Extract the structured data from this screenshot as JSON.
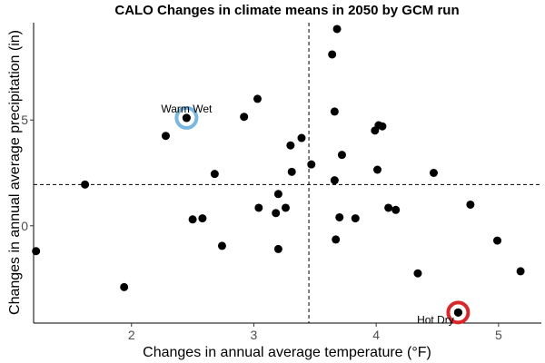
{
  "chart_data": {
    "type": "scatter",
    "title": "CALO Changes in climate means in 2050 by GCM run",
    "xlabel": "Changes in annual average temperature (°F)",
    "ylabel": "Changes in annual average precipitation (in)",
    "xlim": [
      1.2,
      5.35
    ],
    "ylim": [
      -4.6,
      9.6
    ],
    "xticks": [
      2,
      3,
      4,
      5
    ],
    "yticks": [
      0,
      5
    ],
    "grid": false,
    "reference_lines": {
      "x": 3.45,
      "y": 1.95
    },
    "points": [
      {
        "x": 1.22,
        "y": -1.2
      },
      {
        "x": 1.62,
        "y": 1.95
      },
      {
        "x": 1.94,
        "y": -2.9
      },
      {
        "x": 2.28,
        "y": 4.25
      },
      {
        "x": 2.45,
        "y": 5.1
      },
      {
        "x": 2.5,
        "y": 0.3
      },
      {
        "x": 2.58,
        "y": 0.35
      },
      {
        "x": 2.68,
        "y": 2.45
      },
      {
        "x": 2.74,
        "y": -0.95
      },
      {
        "x": 2.92,
        "y": 5.15
      },
      {
        "x": 3.03,
        "y": 6.0
      },
      {
        "x": 3.04,
        "y": 0.85
      },
      {
        "x": 3.18,
        "y": 0.6
      },
      {
        "x": 3.2,
        "y": 1.5
      },
      {
        "x": 3.2,
        "y": -1.1
      },
      {
        "x": 3.26,
        "y": 0.85
      },
      {
        "x": 3.3,
        "y": 3.8
      },
      {
        "x": 3.31,
        "y": 2.55
      },
      {
        "x": 3.39,
        "y": 4.15
      },
      {
        "x": 3.47,
        "y": 2.9
      },
      {
        "x": 3.64,
        "y": 8.1
      },
      {
        "x": 3.66,
        "y": 5.4
      },
      {
        "x": 3.66,
        "y": 2.15
      },
      {
        "x": 3.67,
        "y": -0.65
      },
      {
        "x": 3.68,
        "y": 9.3
      },
      {
        "x": 3.7,
        "y": 0.4
      },
      {
        "x": 3.72,
        "y": 3.35
      },
      {
        "x": 3.83,
        "y": 0.35
      },
      {
        "x": 3.99,
        "y": 4.5
      },
      {
        "x": 4.01,
        "y": 2.65
      },
      {
        "x": 4.02,
        "y": 4.75
      },
      {
        "x": 4.05,
        "y": 4.7
      },
      {
        "x": 4.1,
        "y": 0.85
      },
      {
        "x": 4.16,
        "y": 0.75
      },
      {
        "x": 4.34,
        "y": -2.25
      },
      {
        "x": 4.47,
        "y": 2.5
      },
      {
        "x": 4.67,
        "y": -4.1
      },
      {
        "x": 4.77,
        "y": 1.0
      },
      {
        "x": 4.99,
        "y": -0.7
      },
      {
        "x": 5.18,
        "y": -2.15
      }
    ],
    "annotations": [
      {
        "label": "Warm Wet",
        "x": 2.45,
        "y": 5.1,
        "ring_color": "#7ab8e0"
      },
      {
        "label": "Hot Dry",
        "x": 4.67,
        "y": -4.1,
        "ring_color": "#d8282a"
      }
    ],
    "point_color": "#000000"
  }
}
